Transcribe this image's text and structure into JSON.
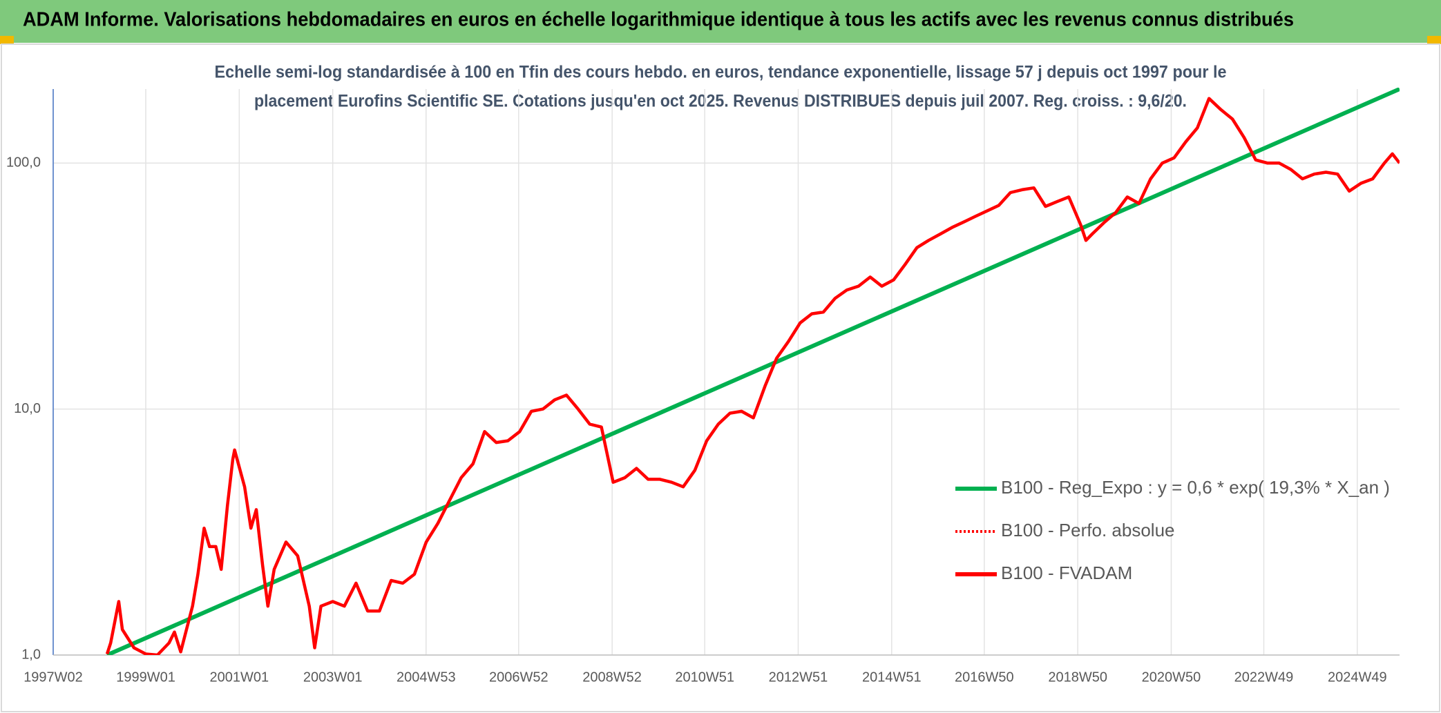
{
  "chart_data": {
    "type": "line",
    "title": "ADAM Informe. Valorisations hebdomadaires en euros en échelle logarithmique identique à tous les actifs avec les revenus connus distribués",
    "subtitle": [
      "Echelle semi-log standardisée à 100 en Tfin des cours hebdo. en euros, tendance exponentielle, lissage 57 j depuis oct 1997 pour le",
      "placement Eurofins Scientific SE. Cotations jusqu'en oct 2025. Revenus DISTRIBUES depuis juil 2007. Reg. croiss. : 9,6/20."
    ],
    "xlim": [
      "1997W02",
      "2025W44"
    ],
    "xticks": [
      "1997W02",
      "1999W01",
      "2001W01",
      "2003W01",
      "2004W53",
      "2006W52",
      "2008W52",
      "2010W51",
      "2012W51",
      "2014W51",
      "2016W50",
      "2018W50",
      "2020W50",
      "2022W49",
      "2024W49"
    ],
    "ylim": [
      1,
      200
    ],
    "yticks": [
      {
        "value": 1,
        "label": "1,0"
      },
      {
        "value": 10,
        "label": "10,0"
      },
      {
        "value": 100,
        "label": "100,0"
      }
    ],
    "y_scale": "log",
    "grid": true,
    "legend": "right",
    "series": [
      {
        "name": "B100 - Reg_Expo : y = 0,6 * exp( 19,3% *  X_an )",
        "color": "#00b050",
        "line_style": "solid",
        "x": [
          "1998W10",
          "2025W44"
        ],
        "values": [
          1.0,
          200
        ]
      },
      {
        "name": "B100 - Perfo. absolue",
        "color": "#ff0000",
        "line_style": "dotted",
        "x": [],
        "values": []
      },
      {
        "name": "B100 - FVADAM",
        "color": "#ff0000",
        "line_style": "solid",
        "x": [
          "1998W10",
          "1998W14",
          "1998W23",
          "1998W27",
          "1998W40",
          "1999W01",
          "1999W14",
          "1999W27",
          "1999W33",
          "1999W40",
          "2000W01",
          "2000W07",
          "2000W14",
          "2000W20",
          "2000W27",
          "2000W33",
          "2000W40",
          "2000W46",
          "2000W48",
          "2001W07",
          "2001W14",
          "2001W20",
          "2001W27",
          "2001W33",
          "2001W40",
          "2002W01",
          "2002W14",
          "2002W27",
          "2002W33",
          "2002W40",
          "2003W01",
          "2003W14",
          "2003W27",
          "2003W40",
          "2004W01",
          "2004W14",
          "2004W27",
          "2004W40",
          "2005W01",
          "2005W14",
          "2005W27",
          "2005W40",
          "2006W01",
          "2006W14",
          "2006W27",
          "2006W40",
          "2007W01",
          "2007W14",
          "2007W27",
          "2007W40",
          "2008W01",
          "2008W14",
          "2008W27",
          "2008W40",
          "2009W01",
          "2009W14",
          "2009W27",
          "2009W40",
          "2010W01",
          "2010W14",
          "2010W27",
          "2010W40",
          "2011W01",
          "2011W14",
          "2011W27",
          "2011W40",
          "2012W01",
          "2012W14",
          "2012W27",
          "2012W40",
          "2013W01",
          "2013W14",
          "2013W27",
          "2013W40",
          "2014W01",
          "2014W14",
          "2014W27",
          "2014W40",
          "2015W01",
          "2015W14",
          "2015W27",
          "2015W40",
          "2016W01",
          "2016W14",
          "2016W27",
          "2016W40",
          "2017W01",
          "2017W14",
          "2017W27",
          "2017W40",
          "2018W01",
          "2018W14",
          "2018W27",
          "2018W40",
          "2019W01",
          "2019W07",
          "2019W14",
          "2019W27",
          "2019W40",
          "2020W01",
          "2020W14",
          "2020W27",
          "2020W40",
          "2021W01",
          "2021W14",
          "2021W27",
          "2021W40",
          "2022W01",
          "2022W14",
          "2022W27",
          "2022W40",
          "2023W01",
          "2023W14",
          "2023W27",
          "2023W40",
          "2024W01",
          "2024W14",
          "2024W27",
          "2024W40",
          "2025W01",
          "2025W14",
          "2025W27",
          "2025W36",
          "2025W44"
        ],
        "values": [
          1.01,
          1.12,
          1.65,
          1.27,
          1.07,
          1.01,
          1.0,
          1.12,
          1.24,
          1.03,
          1.58,
          2.13,
          3.28,
          2.76,
          2.76,
          2.23,
          4.07,
          6.25,
          6.82,
          4.83,
          3.28,
          3.9,
          2.32,
          1.58,
          2.23,
          2.88,
          2.53,
          1.58,
          1.07,
          1.58,
          1.65,
          1.58,
          1.96,
          1.51,
          1.51,
          2.01,
          1.96,
          2.13,
          2.88,
          3.43,
          4.25,
          5.26,
          5.99,
          8.1,
          7.31,
          7.43,
          8.1,
          9.79,
          10.0,
          10.9,
          11.4,
          10.0,
          8.68,
          8.45,
          5.04,
          5.26,
          5.74,
          5.18,
          5.18,
          5.04,
          4.83,
          5.64,
          7.43,
          8.68,
          9.62,
          9.79,
          9.21,
          12.4,
          16.1,
          18.8,
          22.4,
          24.4,
          24.8,
          28.2,
          30.5,
          31.6,
          34.4,
          31.6,
          33.5,
          38.8,
          45.3,
          48.5,
          51.5,
          54.7,
          57.6,
          60.7,
          63.9,
          67.3,
          75.9,
          77.9,
          79.3,
          66.7,
          69.7,
          72.8,
          56.2,
          48.5,
          51.5,
          57.2,
          62.8,
          72.8,
          68.5,
          86.3,
          100,
          105,
          122,
          139,
          183,
          165,
          151,
          127,
          103,
          100,
          100,
          94.2,
          86.3,
          90.2,
          91.8,
          90.2,
          76.9,
          82.8,
          86.3,
          100,
          109,
          100
        ]
      }
    ]
  }
}
